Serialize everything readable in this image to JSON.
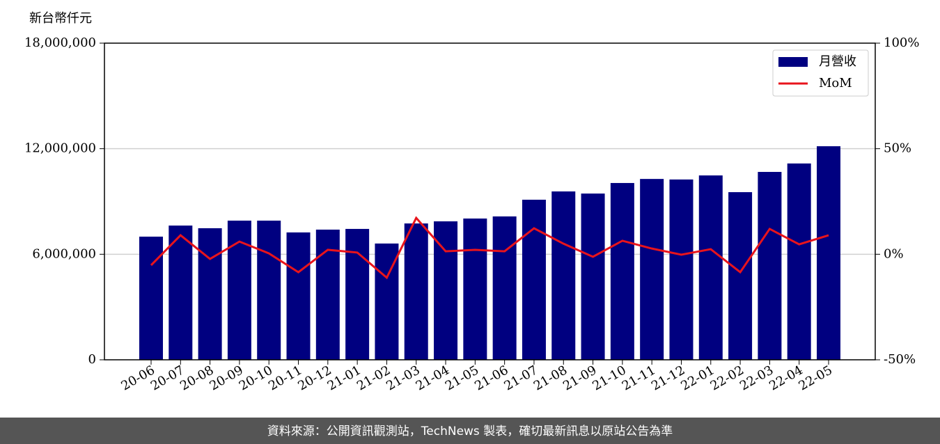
{
  "chart_data": {
    "type": "bar-line",
    "y_label": "新台幣仟元",
    "categories": [
      "20-06",
      "20-07",
      "20-08",
      "20-09",
      "20-10",
      "20-11",
      "20-12",
      "21-01",
      "21-02",
      "21-03",
      "21-04",
      "21-05",
      "21-06",
      "21-07",
      "21-08",
      "21-09",
      "21-10",
      "21-11",
      "21-12",
      "22-01",
      "22-02",
      "22-03",
      "22-04",
      "22-05"
    ],
    "series": [
      {
        "name": "月營收",
        "type": "bar",
        "color": "#000080",
        "values": [
          7000000,
          7630000,
          7480000,
          7910000,
          7910000,
          7240000,
          7400000,
          7440000,
          6610000,
          7750000,
          7870000,
          8030000,
          8150000,
          9100000,
          9570000,
          9450000,
          10050000,
          10280000,
          10250000,
          10480000,
          9530000,
          10680000,
          11160000,
          12140000
        ]
      },
      {
        "name": "MoM",
        "type": "line",
        "axis": "y2",
        "color": "#e8141c",
        "values": [
          -5.2,
          9.0,
          -2.2,
          6.0,
          0.4,
          -8.5,
          2.1,
          0.8,
          -11.1,
          17.2,
          1.4,
          2.1,
          1.4,
          12.3,
          5.0,
          -1.2,
          6.4,
          2.7,
          -0.2,
          2.4,
          -8.5,
          12.0,
          4.7,
          9.0
        ]
      }
    ],
    "ylim": [
      0,
      18000000
    ],
    "yticks": [
      0,
      {
        "value": 6000000,
        "label": "6,000,000"
      },
      {
        "value": 12000000,
        "label": "12,000,000"
      },
      {
        "value": 18000000,
        "label": "18,000,000"
      }
    ],
    "y2lim": [
      -50,
      100
    ],
    "y2ticks": [
      {
        "value": -50,
        "label": "-50%"
      },
      {
        "value": 0,
        "label": "0%"
      },
      {
        "value": 50,
        "label": "50%"
      },
      {
        "value": 100,
        "label": "100%"
      }
    ],
    "grid": true,
    "legend": "upper right"
  },
  "footer": "資料來源：公開資訊觀測站，TechNews 製表，確切最新訊息以原站公告為準"
}
